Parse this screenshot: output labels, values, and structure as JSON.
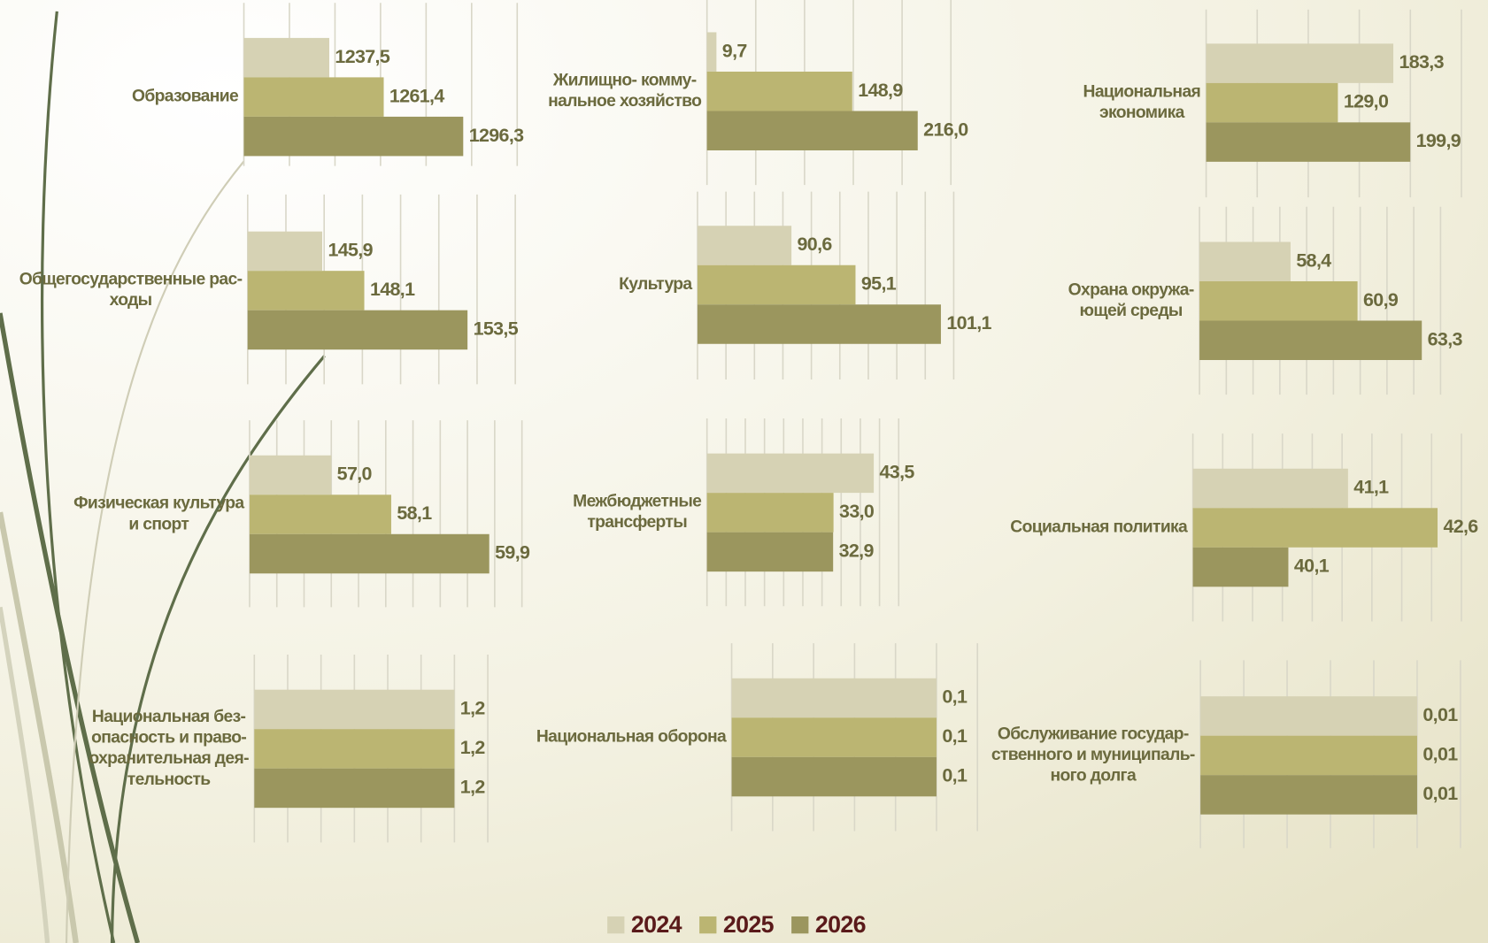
{
  "legend": [
    {
      "name": "2024",
      "color": "#d6d2b4"
    },
    {
      "name": "2025",
      "color": "#bbb572"
    },
    {
      "name": "2026",
      "color": "#9b965e"
    }
  ],
  "chart_data": [
    {
      "type": "bar",
      "title": [
        "Образование"
      ],
      "values": [
        1237.5,
        1261.4,
        1296.3
      ],
      "value_labels": [
        "1237,5",
        "1261,4",
        "1296,3"
      ],
      "xlim": [
        1200,
        1320
      ],
      "xticks": [
        1200,
        1220,
        1240,
        1260,
        1280,
        1300,
        1320
      ]
    },
    {
      "type": "bar",
      "title": [
        "Жилищно- комму-",
        "нальное хозяйство"
      ],
      "values": [
        9.7,
        148.9,
        216
      ],
      "value_labels": [
        "9,7",
        "148,9",
        "216,0"
      ],
      "xlim": [
        0,
        250
      ],
      "xticks": [
        0,
        50,
        100,
        150,
        200,
        250
      ]
    },
    {
      "type": "bar",
      "title": [
        "Национальная",
        "экономика"
      ],
      "values": [
        183.3,
        129,
        199.9
      ],
      "value_labels": [
        "183,3",
        "129,0",
        "199,9"
      ],
      "xlim": [
        0,
        250
      ],
      "xticks": [
        0,
        50,
        100,
        150,
        200,
        250
      ]
    },
    {
      "type": "bar",
      "title": [
        "Общегосударственные рас-",
        "ходы"
      ],
      "values": [
        145.9,
        148.1,
        153.5
      ],
      "value_labels": [
        "145,9",
        "148,1",
        "153,5"
      ],
      "xlim": [
        142,
        156
      ],
      "xticks": [
        142,
        144,
        146,
        148,
        150,
        152,
        154,
        156
      ]
    },
    {
      "type": "bar",
      "title": [
        "Культура"
      ],
      "values": [
        90.6,
        95.1,
        101.1
      ],
      "value_labels": [
        "90,6",
        "95,1",
        "101,1"
      ],
      "xlim": [
        84,
        102
      ],
      "xticks": [
        84,
        86,
        88,
        90,
        92,
        94,
        96,
        98,
        100,
        102
      ]
    },
    {
      "type": "bar",
      "title": [
        "Охрана окружа-",
        "ющей среды"
      ],
      "values": [
        58.4,
        60.9,
        63.3
      ],
      "value_labels": [
        "58,4",
        "60,9",
        "63,3"
      ],
      "xlim": [
        55,
        64
      ],
      "xticks": [
        55,
        56,
        57,
        58,
        59,
        60,
        61,
        62,
        63,
        64
      ]
    },
    {
      "type": "bar",
      "title": [
        "Физическая культура",
        "и спорт"
      ],
      "values": [
        57,
        58.1,
        59.9
      ],
      "value_labels": [
        "57,0",
        "58,1",
        "59,9"
      ],
      "xlim": [
        55.5,
        60.5
      ],
      "xticks": [
        55.5,
        56,
        56.5,
        57,
        57.5,
        58,
        58.5,
        59,
        59.5,
        60,
        60.5
      ]
    },
    {
      "type": "bar",
      "title": [
        "Межбюджетные",
        "трансферты"
      ],
      "values": [
        43.5,
        33,
        32.9
      ],
      "value_labels": [
        "43,5",
        "33,0",
        "32,9"
      ],
      "xlim": [
        0,
        50
      ],
      "xticks": [
        0,
        5,
        10,
        15,
        20,
        25,
        30,
        35,
        40,
        45,
        50
      ]
    },
    {
      "type": "bar",
      "title": [
        "Социальная политика"
      ],
      "values": [
        41.1,
        42.6,
        40.1
      ],
      "value_labels": [
        "41,1",
        "42,6",
        "40,1"
      ],
      "xlim": [
        38.5,
        43
      ],
      "xticks": [
        38.5,
        39,
        39.5,
        40,
        40.5,
        41,
        41.5,
        42,
        42.5,
        43
      ]
    },
    {
      "type": "bar",
      "title": [
        "Национальная без-",
        "опасность и право-",
        "охранительная дея-",
        "тельность"
      ],
      "values": [
        1.2,
        1.2,
        1.2
      ],
      "value_labels": [
        "1,2",
        "1,2",
        "1,2"
      ],
      "xlim": [
        0,
        1.4
      ],
      "xticks": [
        0,
        0.2,
        0.4,
        0.6,
        0.8,
        1,
        1.2,
        1.4
      ]
    },
    {
      "type": "bar",
      "title": [
        "Национальная оборона"
      ],
      "values": [
        0.1,
        0.1,
        0.1
      ],
      "value_labels": [
        "0,1",
        "0,1",
        "0,1"
      ],
      "xlim": [
        0,
        0.12
      ],
      "xticks": [
        0,
        0.02,
        0.04,
        0.06,
        0.08,
        0.1,
        0.12
      ]
    },
    {
      "type": "bar",
      "title": [
        "Обслуживание государ-",
        "ственного и муниципаль-",
        "ного долга"
      ],
      "values": [
        0.01,
        0.01,
        0.01
      ],
      "value_labels": [
        "0,01",
        "0,01",
        "0,01"
      ],
      "xlim": [
        0,
        0.012
      ],
      "xticks": [
        0,
        0.002,
        0.004,
        0.006,
        0.008,
        0.01,
        0.012
      ]
    }
  ]
}
